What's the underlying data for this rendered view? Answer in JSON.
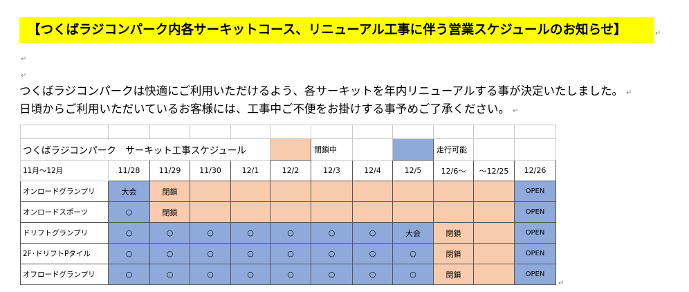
{
  "title": "【つくばラジコンパーク内各サーキットコース、リニューアル工事に伴う営業スケジュールのお知らせ】",
  "paragraph": {
    "line1": "つくばラジコンパークは快適にご利用いただけるよう、各サーキットを年内リニューアルする事が決定いたしました。",
    "line2": "日頃からご利用いただいているお客様には、工事中ご不便をお掛けする事予めご了承ください。"
  },
  "marks": {
    "return": "↵"
  },
  "schedule": {
    "title": "つくばラジコンパーク　サーキット工事スケジュール",
    "legend": {
      "closed_label": "閉鎖中",
      "closed_color": "#f8cbad",
      "open_label": "走行可能",
      "open_color": "#8eaadb"
    },
    "period_label": "11月～12月",
    "dates": [
      "11/28",
      "11/29",
      "11/30",
      "12/1",
      "12/2",
      "12/3",
      "12/4",
      "12/5",
      "12/6～",
      "～12/25",
      "12/26"
    ],
    "rows": [
      {
        "name": "オンロードグランプリ",
        "cells": [
          {
            "t": "大会",
            "s": "b"
          },
          {
            "t": "閉鎖",
            "s": "o"
          },
          {
            "t": "",
            "s": "o"
          },
          {
            "t": "",
            "s": "o"
          },
          {
            "t": "",
            "s": "o"
          },
          {
            "t": "",
            "s": "o"
          },
          {
            "t": "",
            "s": "o"
          },
          {
            "t": "",
            "s": "o"
          },
          {
            "t": "",
            "s": "o"
          },
          {
            "t": "",
            "s": "o"
          },
          {
            "t": "OPEN",
            "s": "b"
          }
        ]
      },
      {
        "name": "オンロードスポーツ",
        "cells": [
          {
            "t": "○",
            "s": "b"
          },
          {
            "t": "閉鎖",
            "s": "o"
          },
          {
            "t": "",
            "s": "o"
          },
          {
            "t": "",
            "s": "o"
          },
          {
            "t": "",
            "s": "o"
          },
          {
            "t": "",
            "s": "o"
          },
          {
            "t": "",
            "s": "o"
          },
          {
            "t": "",
            "s": "o"
          },
          {
            "t": "",
            "s": "o"
          },
          {
            "t": "",
            "s": "o"
          },
          {
            "t": "OPEN",
            "s": "b"
          }
        ]
      },
      {
        "name": "ドリフトグランプリ",
        "cells": [
          {
            "t": "○",
            "s": "b"
          },
          {
            "t": "○",
            "s": "b"
          },
          {
            "t": "○",
            "s": "b"
          },
          {
            "t": "○",
            "s": "b"
          },
          {
            "t": "○",
            "s": "b"
          },
          {
            "t": "○",
            "s": "b"
          },
          {
            "t": "○",
            "s": "b"
          },
          {
            "t": "大会",
            "s": "b"
          },
          {
            "t": "閉鎖",
            "s": "o"
          },
          {
            "t": "",
            "s": "o"
          },
          {
            "t": "OPEN",
            "s": "b"
          }
        ]
      },
      {
        "name": "2F･ドリフトPタイル",
        "cells": [
          {
            "t": "○",
            "s": "b"
          },
          {
            "t": "○",
            "s": "b"
          },
          {
            "t": "○",
            "s": "b"
          },
          {
            "t": "○",
            "s": "b"
          },
          {
            "t": "○",
            "s": "b"
          },
          {
            "t": "○",
            "s": "b"
          },
          {
            "t": "○",
            "s": "b"
          },
          {
            "t": "○",
            "s": "b"
          },
          {
            "t": "閉鎖",
            "s": "o"
          },
          {
            "t": "",
            "s": "o"
          },
          {
            "t": "OPEN",
            "s": "b"
          }
        ]
      },
      {
        "name": "オフロードグランプリ",
        "cells": [
          {
            "t": "○",
            "s": "b"
          },
          {
            "t": "○",
            "s": "b"
          },
          {
            "t": "○",
            "s": "b"
          },
          {
            "t": "○",
            "s": "b"
          },
          {
            "t": "○",
            "s": "b"
          },
          {
            "t": "○",
            "s": "b"
          },
          {
            "t": "○",
            "s": "b"
          },
          {
            "t": "○",
            "s": "b"
          },
          {
            "t": "閉鎖",
            "s": "o"
          },
          {
            "t": "",
            "s": "o"
          },
          {
            "t": "OPEN",
            "s": "b"
          }
        ]
      }
    ]
  }
}
